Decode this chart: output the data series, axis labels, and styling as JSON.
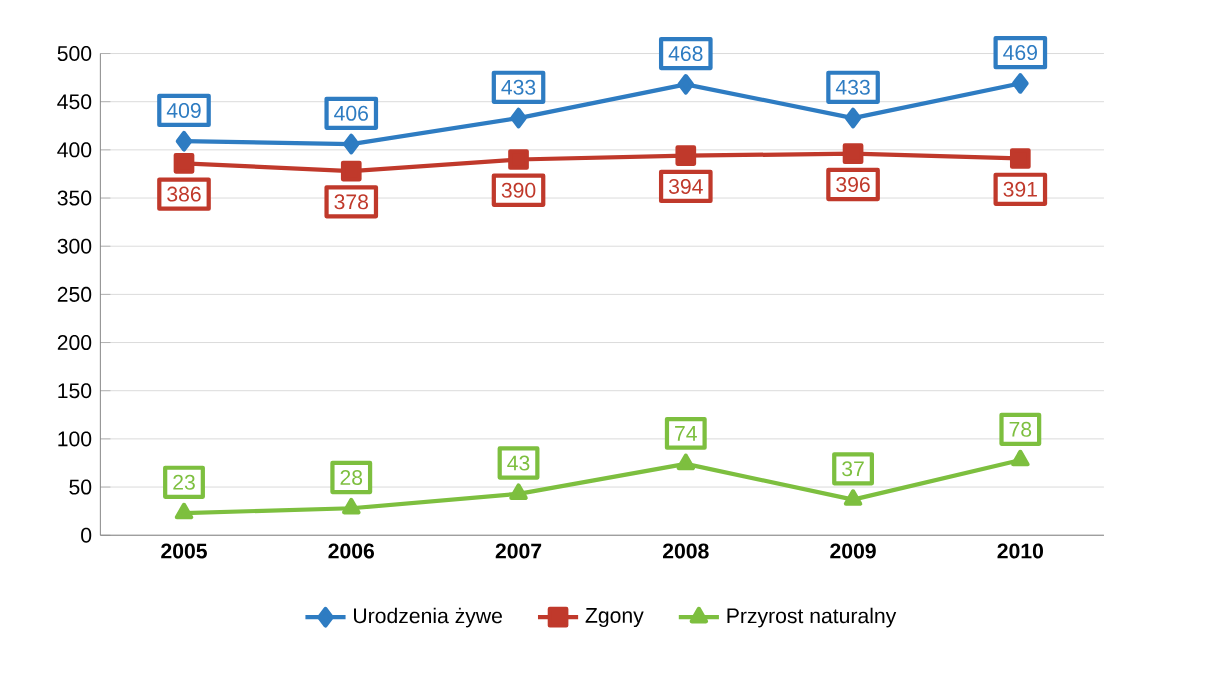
{
  "chart_data": {
    "type": "line",
    "categories": [
      "2005",
      "2006",
      "2007",
      "2008",
      "2009",
      "2010"
    ],
    "series": [
      {
        "name": "Urodzenia żywe",
        "color": "#2e7cc2",
        "marker": "diamond",
        "values": [
          409,
          406,
          433,
          468,
          433,
          469
        ]
      },
      {
        "name": "Zgony",
        "color": "#c0392b",
        "marker": "square",
        "values": [
          386,
          378,
          390,
          394,
          396,
          391
        ]
      },
      {
        "name": "Przyrost naturalny",
        "color": "#7dbf3f",
        "marker": "triangle",
        "values": [
          23,
          28,
          43,
          74,
          37,
          78
        ]
      }
    ],
    "ylim": [
      0,
      500
    ],
    "yticks": [
      0,
      50,
      100,
      150,
      200,
      250,
      300,
      350,
      400,
      450,
      500
    ],
    "grid": "y",
    "legend": "bottom",
    "data_labels": true
  }
}
